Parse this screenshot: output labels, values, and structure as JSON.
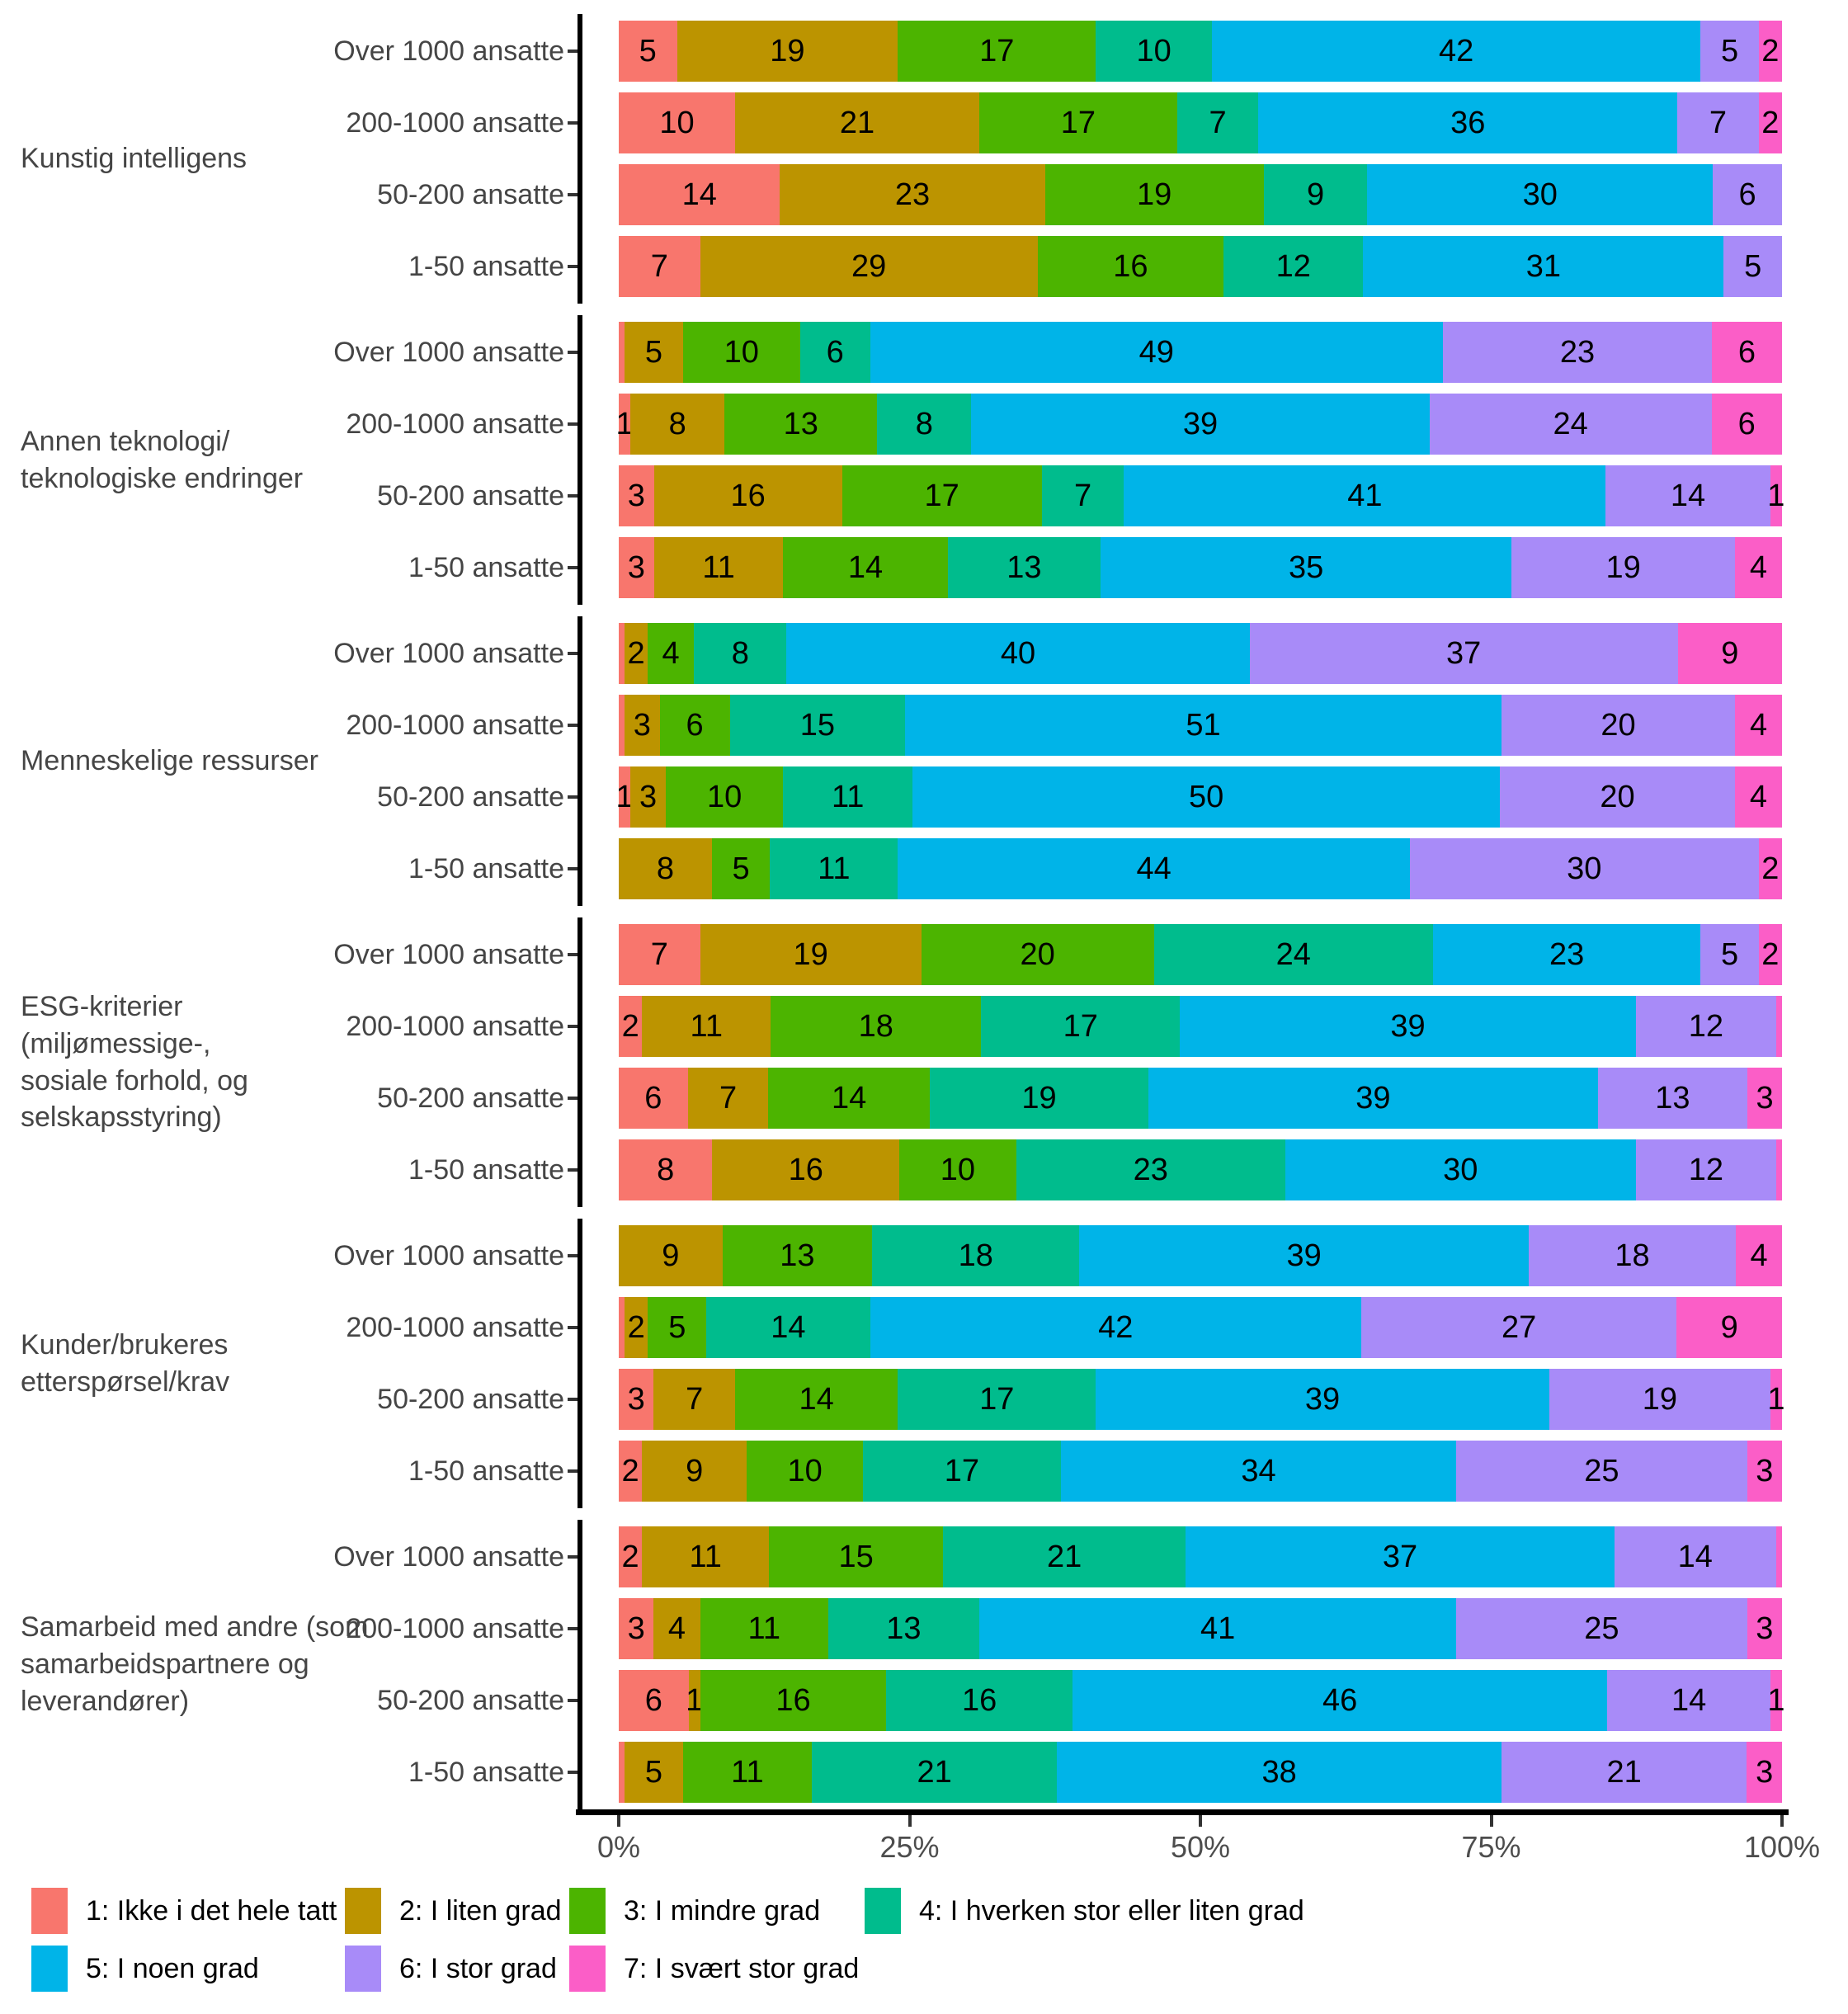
{
  "chart_data": {
    "type": "bar",
    "stacking": "horizontal-100-percent",
    "x_ticks": [
      "0%",
      "25%",
      "50%",
      "75%",
      "100%"
    ],
    "xlim": [
      0,
      100
    ],
    "grid": false,
    "legend_position": "bottom",
    "series_legend": [
      {
        "label": "1: Ikke i det hele tatt",
        "color": "#F8766D"
      },
      {
        "label": "2: I liten grad",
        "color": "#BC9400"
      },
      {
        "label": "3: I mindre grad",
        "color": "#4CB400"
      },
      {
        "label": "4: I hverken stor eller liten grad",
        "color": "#00BC8D"
      },
      {
        "label": "5: I noen grad",
        "color": "#00B4E8"
      },
      {
        "label": "6: I stor grad",
        "color": "#A88BF8"
      },
      {
        "label": "7: I svært stor grad",
        "color": "#FB5EC7"
      }
    ],
    "groups": [
      {
        "label_lines": [
          "Kunstig intelligens"
        ],
        "rows": [
          {
            "category": "Over 1000 ansatte",
            "values": [
              5,
              19,
              17,
              10,
              42,
              5,
              2
            ]
          },
          {
            "category": "200-1000 ansatte",
            "values": [
              10,
              21,
              17,
              7,
              36,
              7,
              2
            ]
          },
          {
            "category": "50-200 ansatte",
            "values": [
              14,
              23,
              19,
              9,
              30,
              6,
              null
            ]
          },
          {
            "category": "1-50 ansatte",
            "values": [
              7,
              29,
              16,
              12,
              31,
              5,
              null
            ]
          }
        ]
      },
      {
        "label_lines": [
          "Annen teknologi/",
          "teknologiske endringer"
        ],
        "rows": [
          {
            "category": "Over 1000 ansatte",
            "values": [
              0.5,
              5,
              10,
              6,
              49,
              23,
              6
            ]
          },
          {
            "category": "200-1000 ansatte",
            "values": [
              1,
              8,
              13,
              8,
              39,
              24,
              6
            ]
          },
          {
            "category": "50-200 ansatte",
            "values": [
              3,
              16,
              17,
              7,
              41,
              14,
              1
            ]
          },
          {
            "category": "1-50 ansatte",
            "values": [
              3,
              11,
              14,
              13,
              35,
              19,
              4
            ]
          }
        ]
      },
      {
        "label_lines": [
          "Menneskelige ressurser"
        ],
        "rows": [
          {
            "category": "Over 1000 ansatte",
            "values": [
              0.5,
              2,
              4,
              8,
              40,
              37,
              9
            ]
          },
          {
            "category": "200-1000 ansatte",
            "values": [
              0.5,
              3,
              6,
              15,
              51,
              20,
              4
            ]
          },
          {
            "category": "50-200 ansatte",
            "values": [
              1,
              3,
              10,
              11,
              50,
              20,
              4
            ]
          },
          {
            "category": "1-50 ansatte",
            "values": [
              null,
              8,
              5,
              11,
              44,
              30,
              2
            ]
          }
        ]
      },
      {
        "label_lines": [
          "ESG-kriterier",
          "(miljømessige-,",
          "sosiale forhold, og",
          "selskapsstyring)"
        ],
        "rows": [
          {
            "category": "Over 1000 ansatte",
            "values": [
              7,
              19,
              20,
              24,
              23,
              5,
              2
            ]
          },
          {
            "category": "200-1000 ansatte",
            "values": [
              2,
              11,
              18,
              17,
              39,
              12,
              0.5
            ]
          },
          {
            "category": "50-200 ansatte",
            "values": [
              6,
              7,
              14,
              19,
              39,
              13,
              3
            ]
          },
          {
            "category": "1-50 ansatte",
            "values": [
              8,
              16,
              10,
              23,
              30,
              12,
              0.5
            ]
          }
        ]
      },
      {
        "label_lines": [
          "Kunder/brukeres",
          "etterspørsel/krav"
        ],
        "rows": [
          {
            "category": "Over 1000 ansatte",
            "values": [
              null,
              9,
              13,
              18,
              39,
              18,
              4
            ]
          },
          {
            "category": "200-1000 ansatte",
            "values": [
              0.5,
              2,
              5,
              14,
              42,
              27,
              9
            ]
          },
          {
            "category": "50-200 ansatte",
            "values": [
              3,
              7,
              14,
              17,
              39,
              19,
              1
            ]
          },
          {
            "category": "1-50 ansatte",
            "values": [
              2,
              9,
              10,
              17,
              34,
              25,
              3
            ]
          }
        ]
      },
      {
        "label_lines": [
          "Samarbeid med andre (som",
          "samarbeidspartnere og",
          "leverandører)"
        ],
        "rows": [
          {
            "category": "Over 1000 ansatte",
            "values": [
              2,
              11,
              15,
              21,
              37,
              14,
              0.5
            ]
          },
          {
            "category": "200-1000 ansatte",
            "values": [
              3,
              4,
              11,
              13,
              41,
              25,
              3
            ]
          },
          {
            "category": "50-200 ansatte",
            "values": [
              6,
              1,
              16,
              16,
              46,
              14,
              1
            ]
          },
          {
            "category": "1-50 ansatte",
            "values": [
              0.5,
              5,
              11,
              21,
              38,
              21,
              3
            ]
          }
        ]
      }
    ]
  }
}
